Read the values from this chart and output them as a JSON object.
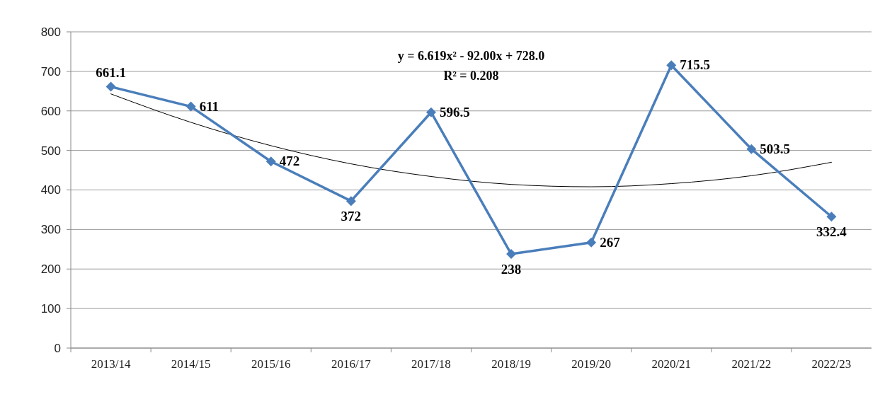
{
  "chart_data": {
    "type": "line",
    "categories": [
      "2013/14",
      "2014/15",
      "2015/16",
      "2016/17",
      "2017/18",
      "2018/19",
      "2019/20",
      "2020/21",
      "2021/22",
      "2022/23"
    ],
    "series": [
      {
        "color": "#4a7ebb",
        "values": [
          661.1,
          611,
          472,
          372,
          596.5,
          238,
          267,
          715.5,
          503.5,
          332.4
        ],
        "marker": "diamond",
        "data_labels": true
      },
      {
        "type": "line",
        "color": "#000000",
        "marker": "none",
        "x": [
          "2013/14",
          "2014/15",
          "2015/16",
          "2016/17",
          "2017/18",
          "2018/19",
          "2019/20",
          "2020/21",
          "2021/22",
          "2022/23"
        ],
        "values": [
          643,
          571,
          512,
          466,
          434,
          414,
          408,
          416,
          436,
          470
        ]
      }
    ],
    "ylim": [
      0,
      800
    ],
    "yticks": [
      0,
      100,
      200,
      300,
      400,
      500,
      600,
      700,
      800
    ],
    "grid": "y",
    "annotations": [
      "y = 6.619x² - 92.00x + 728.0",
      "R² = 0.208"
    ]
  }
}
